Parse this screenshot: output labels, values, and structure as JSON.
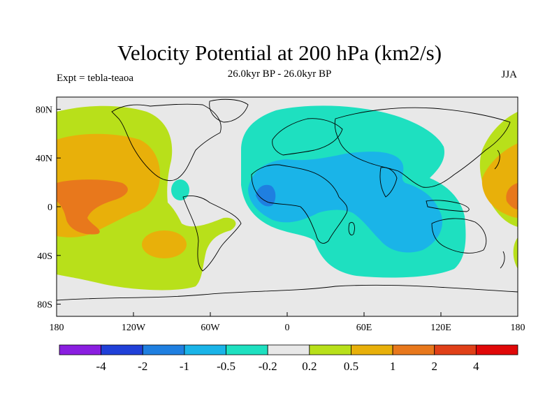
{
  "figure": {
    "title": "Velocity Potential at 200 hPa (km2/s)",
    "subtitle": "26.0kyr BP - 26.0kyr BP",
    "left_label": "Expt = tebla-teaoa",
    "right_label": "JJA"
  },
  "axes": {
    "lat_ticks": [
      "80N",
      "40N",
      "0",
      "40S",
      "80S"
    ],
    "lon_ticks": [
      "180",
      "120W",
      "60W",
      "0",
      "60E",
      "120E",
      "180"
    ],
    "lon_range": [
      -180,
      180
    ],
    "lat_range": [
      -90,
      90
    ]
  },
  "colorbar": {
    "labels": [
      "-4",
      "-2",
      "-1",
      "-0.5",
      "-0.2",
      "0.2",
      "0.5",
      "1",
      "2",
      "4"
    ],
    "colors": [
      "#8a1ee0",
      "#2040d8",
      "#1f7fe0",
      "#1ab4e8",
      "#1ee0c0",
      "#e8e8e8",
      "#b8e01a",
      "#e8b00a",
      "#e8781c",
      "#e04018",
      "#e00808"
    ]
  },
  "colors": {
    "background": "#e8e8e8",
    "coast": "#000000"
  }
}
